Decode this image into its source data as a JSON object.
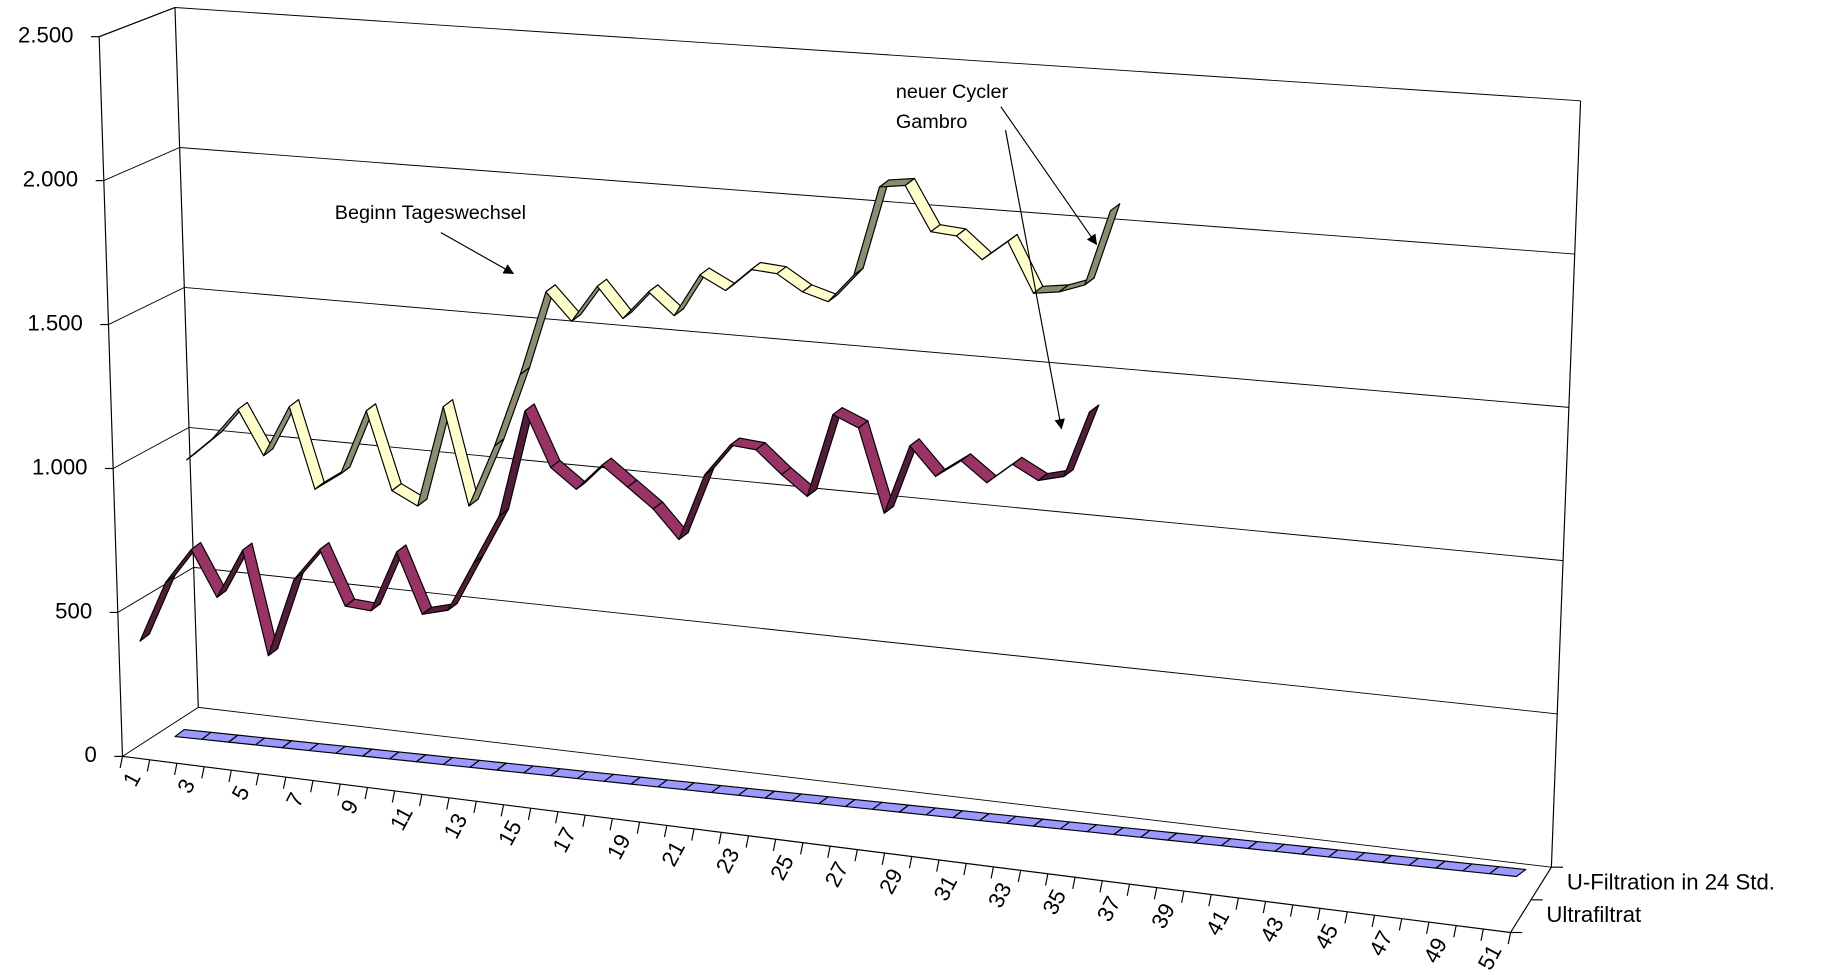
{
  "chart_data": {
    "type": "line",
    "ylim": [
      0,
      2500
    ],
    "yticks": [
      0,
      500,
      {
        "value": 1000,
        "label": "1.000"
      },
      {
        "value": 1500,
        "label": "1.500"
      },
      {
        "value": 2000,
        "label": "2.000"
      },
      {
        "value": 2500,
        "label": "2.500"
      }
    ],
    "grid": true,
    "categories": [
      1,
      null,
      3,
      null,
      5,
      null,
      7,
      null,
      9,
      null,
      11,
      null,
      13,
      null,
      15,
      null,
      17,
      null,
      19,
      null,
      21,
      null,
      23,
      null,
      25,
      null,
      27,
      null,
      29,
      null,
      31,
      null,
      33,
      null,
      35,
      null,
      37,
      null,
      39,
      null,
      41,
      null,
      43,
      null,
      45,
      null,
      47,
      null,
      49,
      null,
      51
    ],
    "series": [
      {
        "name": "U-Filtration in 24 Std.",
        "color": "#ffffcc",
        "values": [
          1030,
          1110,
          1220,
          1060,
          1240,
          950,
          1010,
          1240,
          960,
          910,
          1270,
          920,
          1140,
          1400,
          1700,
          1600,
          1730,
          1620,
          1720,
          1640,
          1790,
          1740,
          1820,
          1810,
          1750,
          1720,
          1820,
          2140,
          2150,
          1990,
          1980,
          1900,
          1970,
          1790,
          1800,
          1830,
          2100,
          null,
          null,
          null,
          null,
          null,
          null,
          null,
          null,
          null,
          null,
          null,
          null,
          null,
          null
        ]
      },
      {
        "name": "Ultrafiltrat",
        "color": "#993366",
        "values": [
          400,
          610,
          730,
          570,
          740,
          380,
          650,
          760,
          570,
          560,
          770,
          560,
          580,
          750,
          920,
          1290,
          1100,
          1030,
          1120,
          1050,
          980,
          880,
          1110,
          1220,
          1210,
          1130,
          1060,
          1350,
          1310,
          1020,
          1260,
          1160,
          1220,
          1150,
          1220,
          1170,
          1190,
          1420,
          null,
          null,
          null,
          null,
          null,
          null,
          null,
          null,
          null,
          null,
          null,
          null,
          null
        ]
      },
      {
        "color": "#9999ff",
        "values": [
          0,
          0,
          0,
          0,
          0,
          0,
          0,
          0,
          0,
          0,
          0,
          0,
          0,
          0,
          0,
          0,
          0,
          0,
          0,
          0,
          0,
          0,
          0,
          0,
          0,
          0,
          0,
          0,
          0,
          0,
          0,
          0,
          0,
          0,
          0,
          0,
          0,
          0,
          0,
          0,
          0,
          0,
          0,
          0,
          0,
          0,
          0,
          0,
          0,
          0,
          0
        ]
      }
    ],
    "annotations": [
      "Beginn Tageswechsel",
      "neuer Cycler",
      "Gambro"
    ]
  }
}
